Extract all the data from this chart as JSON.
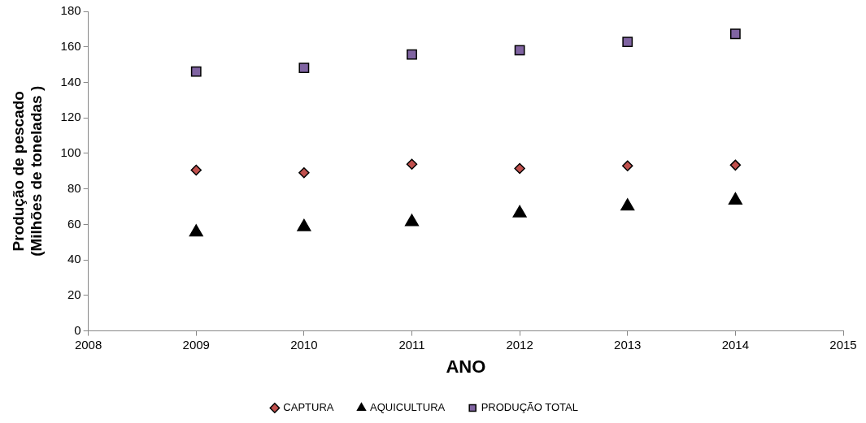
{
  "chart_data": {
    "type": "scatter",
    "xlabel": "ANO",
    "ylabel": "Produção de pescado\n(Milhões de toneladas )",
    "xlim": [
      2008,
      2015
    ],
    "xticks": [
      2008,
      2009,
      2010,
      2011,
      2012,
      2013,
      2014,
      2015
    ],
    "ylim": [
      0,
      180
    ],
    "yticks": [
      0,
      20,
      40,
      60,
      80,
      100,
      120,
      140,
      160,
      180
    ],
    "grid": false,
    "legend": "bottom",
    "x": [
      2009,
      2010,
      2011,
      2012,
      2013,
      2014
    ],
    "series": [
      {
        "name": "CAPTURA",
        "color": "#c0504d",
        "marker": "diamond",
        "values": [
          90.6,
          89.1,
          93.9,
          91.5,
          93.0,
          93.4
        ]
      },
      {
        "name": "AQUICULTURA",
        "color": "#000000",
        "marker": "triangle",
        "values": [
          55.6,
          58.6,
          61.4,
          66.3,
          70.2,
          73.6
        ]
      },
      {
        "name": "PRODUÇÃO TOTAL",
        "color": "#8064a2",
        "marker": "square",
        "values": [
          146.1,
          148.2,
          155.7,
          158.1,
          162.8,
          167.3
        ]
      }
    ]
  }
}
